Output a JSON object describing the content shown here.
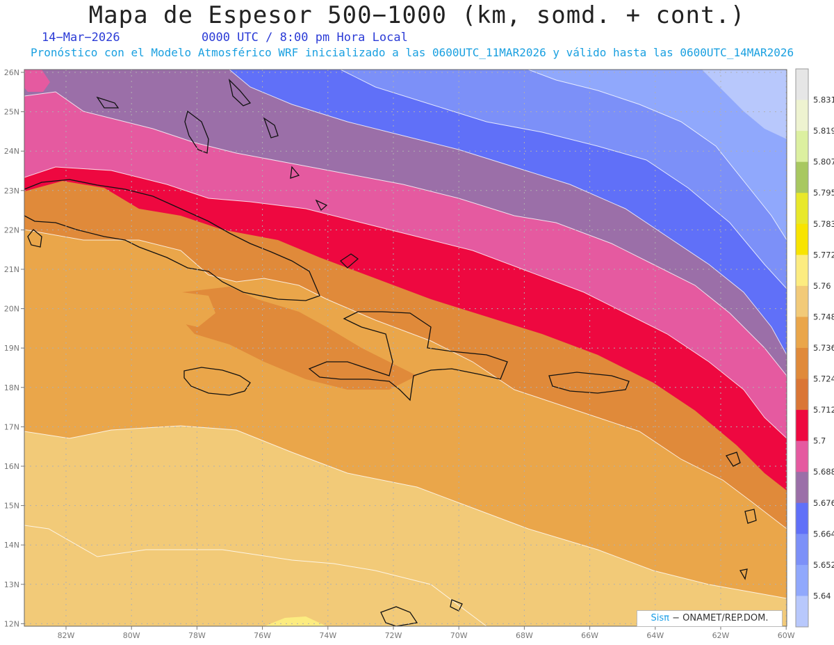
{
  "header": {
    "title": "Mapa de Espesor 500−1000 (km, somd. + cont.)",
    "date": "14−Mar−2026",
    "time": "0000 UTC / 8:00 pm Hora Local",
    "forecast": "Pronóstico con el Modelo Atmosférico WRF inicializado a las 0600UTC_11MAR2026 y válido hasta las  0600UTC_14MAR2026"
  },
  "axes": {
    "lat_labels": [
      "26N",
      "25N",
      "24N",
      "23N",
      "22N",
      "21N",
      "20N",
      "19N",
      "18N",
      "17N",
      "16N",
      "15N",
      "14N",
      "13N",
      "12N"
    ],
    "lon_labels": [
      "82W",
      "80W",
      "78W",
      "76W",
      "74W",
      "72W",
      "70W",
      "68W",
      "66W",
      "64W",
      "62W",
      "60W"
    ]
  },
  "colorbar": {
    "labels": [
      "5.831",
      "5.819",
      "5.807",
      "5.795",
      "5.783",
      "5.772",
      "5.76",
      "5.748",
      "5.736",
      "5.724",
      "5.712",
      "5.7",
      "5.688",
      "5.676",
      "5.664",
      "5.652",
      "5.64"
    ],
    "colors": [
      "#e6e6e6",
      "#eef3d0",
      "#dcf0a0",
      "#a8c860",
      "#e8e82a",
      "#f8e400",
      "#fcec80",
      "#f2ca78",
      "#eaa64a",
      "#e08a3a",
      "#da7636",
      "#ee0840",
      "#e55aa0",
      "#9b6fa8",
      "#6070f8",
      "#7c90f8",
      "#90a8fc",
      "#b8c8fc"
    ]
  },
  "credit": {
    "sis": "Sisπ",
    "text": "− ONAMET/REP.DOM."
  }
}
